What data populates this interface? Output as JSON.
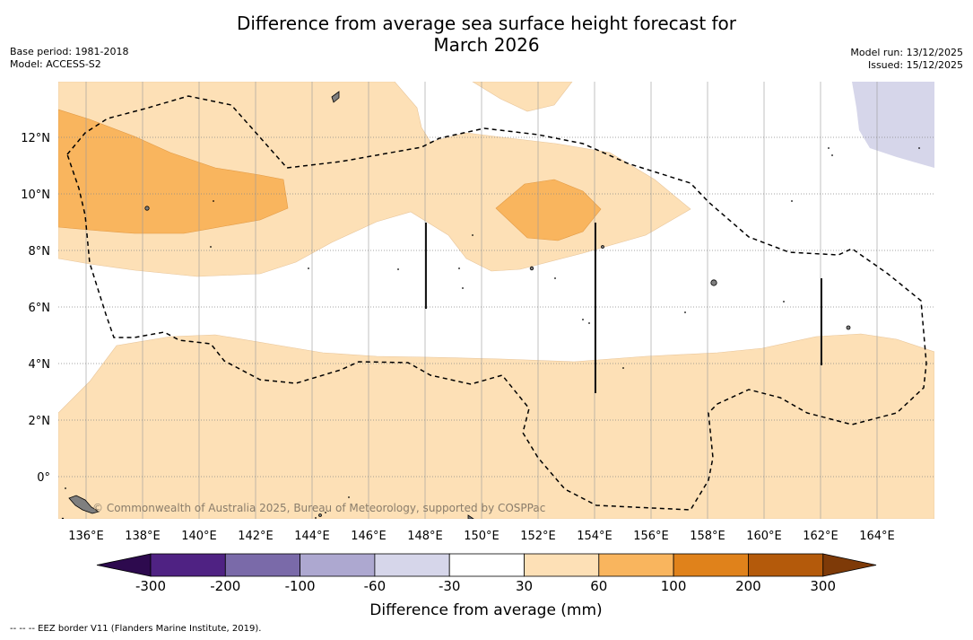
{
  "title_line1": "Difference from average sea surface height forecast for",
  "title_line2": "March 2026",
  "meta_left": [
    "Base period: 1981-2018",
    "Model: ACCESS-S2"
  ],
  "meta_right": [
    "Model run: 13/12/2025",
    "Issued: 15/12/2025"
  ],
  "credit": "© Commonwealth of Australia 2025, Bureau of Meteorology, supported by COSPPac",
  "footer": "-- -- -- EEZ border V11 (Flanders Marine Institute, 2019).",
  "map": {
    "lon_min": 135,
    "lon_max": 166,
    "lat_min": -1.5,
    "lat_max": 14,
    "lon_ticks": [
      {
        "value": 136,
        "label": "136°E"
      },
      {
        "value": 138,
        "label": "138°E"
      },
      {
        "value": 140,
        "label": "140°E"
      },
      {
        "value": 142,
        "label": "142°E"
      },
      {
        "value": 144,
        "label": "144°E"
      },
      {
        "value": 146,
        "label": "146°E"
      },
      {
        "value": 148,
        "label": "148°E"
      },
      {
        "value": 150,
        "label": "150°E"
      },
      {
        "value": 152,
        "label": "152°E"
      },
      {
        "value": 154,
        "label": "154°E"
      },
      {
        "value": 156,
        "label": "156°E"
      },
      {
        "value": 158,
        "label": "158°E"
      },
      {
        "value": 160,
        "label": "160°E"
      },
      {
        "value": 162,
        "label": "162°E"
      },
      {
        "value": 164,
        "label": "164°E"
      }
    ],
    "lat_ticks": [
      {
        "value": 12,
        "label": "12°N"
      },
      {
        "value": 10,
        "label": "10°N"
      },
      {
        "value": 8,
        "label": "8°N"
      },
      {
        "value": 6,
        "label": "6°N"
      },
      {
        "value": 4,
        "label": "4°N"
      },
      {
        "value": 2,
        "label": "2°N"
      },
      {
        "value": 0,
        "label": "0°"
      }
    ]
  },
  "colorbar": {
    "title": "Difference from average (mm)",
    "colors": [
      "#4f2283",
      "#7a6aa9",
      "#ada8d0",
      "#d6d6ea",
      "#ffffff",
      "#fde0b6",
      "#f9b55e",
      "#e0821b",
      "#b45a0b"
    ],
    "under_color": "#2d0a4e",
    "over_color": "#7e3a08",
    "labels": [
      "-300",
      "-200",
      "-100",
      "-60",
      "-30",
      "30",
      "60",
      "100",
      "200",
      "300"
    ]
  },
  "colors": {
    "light_orange": "#fde0b6",
    "mid_orange": "#f9b55e",
    "light_purple": "#d6d6ea",
    "land": "#7f7f7f"
  }
}
